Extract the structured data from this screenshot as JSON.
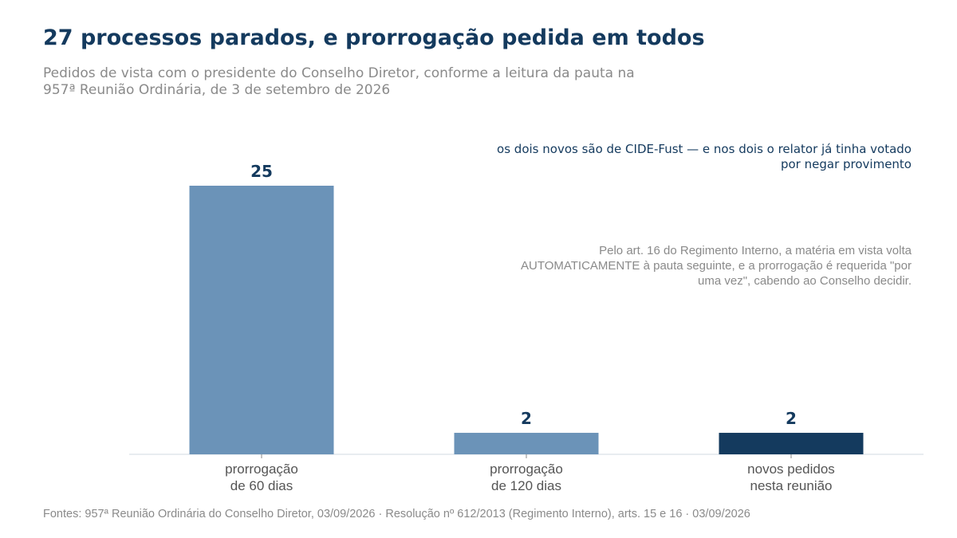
{
  "title": "27 processos parados, e prorrogação pedida em todos",
  "subtitle": "Pedidos de vista com o presidente do Conselho Diretor, conforme a leitura da pauta na 957ª Reunião Ordinária, de 3 de setembro de 2026",
  "colors": {
    "title": "#143a5e",
    "bar_light": "#6b93b8",
    "bar_dark": "#143a5e",
    "value_label": "#143a5e",
    "tick_label": "#555555",
    "axis": "#d0d8e0"
  },
  "annotations": {
    "highlight": "os dois novos são de CIDE-Fust — e nos dois o relator já tinha votado por negar provimento",
    "note": "Pelo art. 16 do Regimento Interno, a matéria em vista volta AUTOMATICAMENTE à pauta seguinte, e a prorrogação é requerida \"por uma vez\", cabendo ao Conselho decidir."
  },
  "source": "Fontes: 957ª Reunião Ordinária do Conselho Diretor, 03/09/2026 · Resolução nº 612/2013 (Regimento Interno), arts. 15 e 16 · 03/09/2026",
  "chart_data": {
    "type": "bar",
    "categories": [
      [
        "prorrogação",
        "de 60 dias"
      ],
      [
        "prorrogação",
        "de 120 dias"
      ],
      [
        "novos pedidos",
        "nesta reunião"
      ]
    ],
    "values": [
      25,
      2,
      2
    ],
    "highlighted_index": 2,
    "ylim": [
      0,
      25
    ],
    "grid": false,
    "legend": "none"
  }
}
